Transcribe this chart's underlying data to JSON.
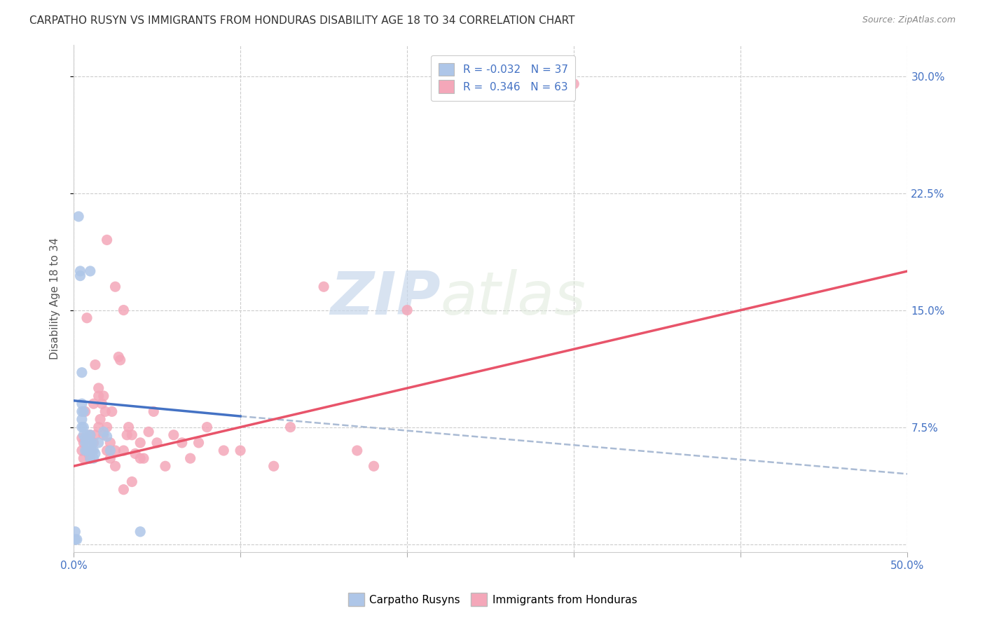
{
  "title": "CARPATHO RUSYN VS IMMIGRANTS FROM HONDURAS DISABILITY AGE 18 TO 34 CORRELATION CHART",
  "source": "Source: ZipAtlas.com",
  "ylabel": "Disability Age 18 to 34",
  "xlim": [
    0.0,
    0.5
  ],
  "ylim": [
    -0.005,
    0.32
  ],
  "xtick_positions": [
    0.0,
    0.1,
    0.2,
    0.3,
    0.4,
    0.5
  ],
  "xticklabels": [
    "0.0%",
    "",
    "",
    "",
    "",
    "50.0%"
  ],
  "ytick_positions": [
    0.075,
    0.15,
    0.225,
    0.3
  ],
  "yticklabels": [
    "7.5%",
    "15.0%",
    "22.5%",
    "30.0%"
  ],
  "blue_R": "-0.032",
  "blue_N": "37",
  "pink_R": "0.346",
  "pink_N": "63",
  "blue_color": "#aec6e8",
  "pink_color": "#f4a7b9",
  "blue_line_color": "#4472c4",
  "pink_line_color": "#e8546a",
  "dashed_line_color": "#aabbd4",
  "watermark_zip": "ZIP",
  "watermark_atlas": "atlas",
  "blue_line_x": [
    0.0,
    0.1
  ],
  "blue_line_y": [
    0.092,
    0.082
  ],
  "pink_line_x": [
    0.0,
    0.5
  ],
  "pink_line_y": [
    0.05,
    0.175
  ],
  "dash_line_x": [
    0.1,
    0.5
  ],
  "dash_line_y": [
    0.082,
    0.045
  ],
  "blue_scatter_x": [
    0.003,
    0.004,
    0.004,
    0.005,
    0.005,
    0.005,
    0.005,
    0.005,
    0.006,
    0.006,
    0.006,
    0.007,
    0.007,
    0.007,
    0.008,
    0.008,
    0.008,
    0.009,
    0.009,
    0.01,
    0.01,
    0.01,
    0.01,
    0.011,
    0.011,
    0.012,
    0.012,
    0.013,
    0.015,
    0.018,
    0.02,
    0.022,
    0.01,
    0.04,
    0.002,
    0.001,
    0.001
  ],
  "blue_scatter_y": [
    0.21,
    0.175,
    0.172,
    0.075,
    0.08,
    0.085,
    0.09,
    0.11,
    0.07,
    0.075,
    0.085,
    0.06,
    0.065,
    0.068,
    0.06,
    0.065,
    0.07,
    0.06,
    0.065,
    0.055,
    0.06,
    0.065,
    0.07,
    0.06,
    0.065,
    0.055,
    0.06,
    0.058,
    0.065,
    0.072,
    0.069,
    0.06,
    0.175,
    0.008,
    0.003,
    0.003,
    0.008
  ],
  "pink_scatter_x": [
    0.005,
    0.005,
    0.006,
    0.006,
    0.007,
    0.008,
    0.008,
    0.009,
    0.01,
    0.01,
    0.011,
    0.012,
    0.012,
    0.013,
    0.013,
    0.015,
    0.015,
    0.015,
    0.016,
    0.017,
    0.018,
    0.018,
    0.019,
    0.02,
    0.02,
    0.022,
    0.022,
    0.023,
    0.025,
    0.025,
    0.027,
    0.028,
    0.03,
    0.03,
    0.032,
    0.033,
    0.035,
    0.035,
    0.037,
    0.04,
    0.04,
    0.042,
    0.045,
    0.048,
    0.05,
    0.055,
    0.06,
    0.065,
    0.07,
    0.075,
    0.08,
    0.09,
    0.1,
    0.12,
    0.13,
    0.15,
    0.17,
    0.2,
    0.02,
    0.025,
    0.03,
    0.18,
    0.3
  ],
  "pink_scatter_y": [
    0.06,
    0.068,
    0.055,
    0.065,
    0.085,
    0.06,
    0.145,
    0.058,
    0.055,
    0.07,
    0.06,
    0.065,
    0.09,
    0.07,
    0.115,
    0.075,
    0.095,
    0.1,
    0.08,
    0.09,
    0.07,
    0.095,
    0.085,
    0.06,
    0.075,
    0.055,
    0.065,
    0.085,
    0.05,
    0.06,
    0.12,
    0.118,
    0.035,
    0.06,
    0.07,
    0.075,
    0.07,
    0.04,
    0.058,
    0.055,
    0.065,
    0.055,
    0.072,
    0.085,
    0.065,
    0.05,
    0.07,
    0.065,
    0.055,
    0.065,
    0.075,
    0.06,
    0.06,
    0.05,
    0.075,
    0.165,
    0.06,
    0.15,
    0.195,
    0.165,
    0.15,
    0.05,
    0.295
  ]
}
